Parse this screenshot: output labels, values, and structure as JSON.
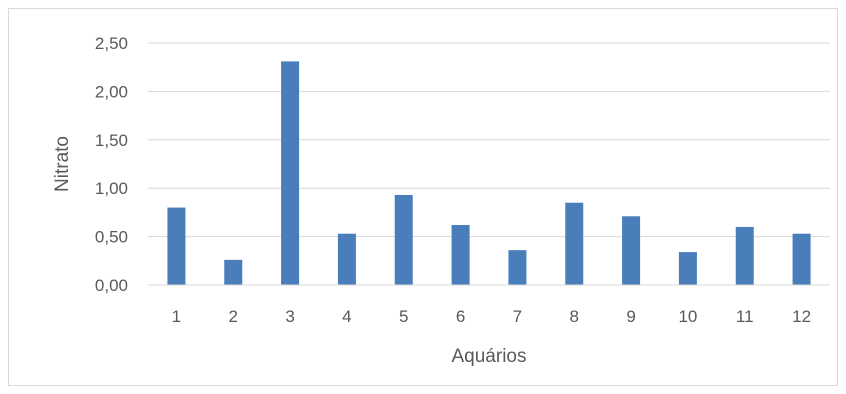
{
  "chart_data": {
    "type": "bar",
    "categories": [
      "1",
      "2",
      "3",
      "4",
      "5",
      "6",
      "7",
      "8",
      "9",
      "10",
      "11",
      "12"
    ],
    "values": [
      0.8,
      0.26,
      2.31,
      0.53,
      0.93,
      0.62,
      0.36,
      0.85,
      0.71,
      0.34,
      0.6,
      0.53
    ],
    "xlabel": "Aquários",
    "ylabel": "Nitrato",
    "ylim": [
      0,
      2.5
    ],
    "yticks": [
      "0,00",
      "0,50",
      "1,00",
      "1,50",
      "2,00",
      "2,50"
    ],
    "ytick_values": [
      0,
      0.5,
      1,
      1.5,
      2,
      2.5
    ],
    "grid": true,
    "legend": "none",
    "colors": {
      "bar": "#4a7ebb",
      "grid": "#d9d9d9",
      "text": "#595959"
    }
  }
}
